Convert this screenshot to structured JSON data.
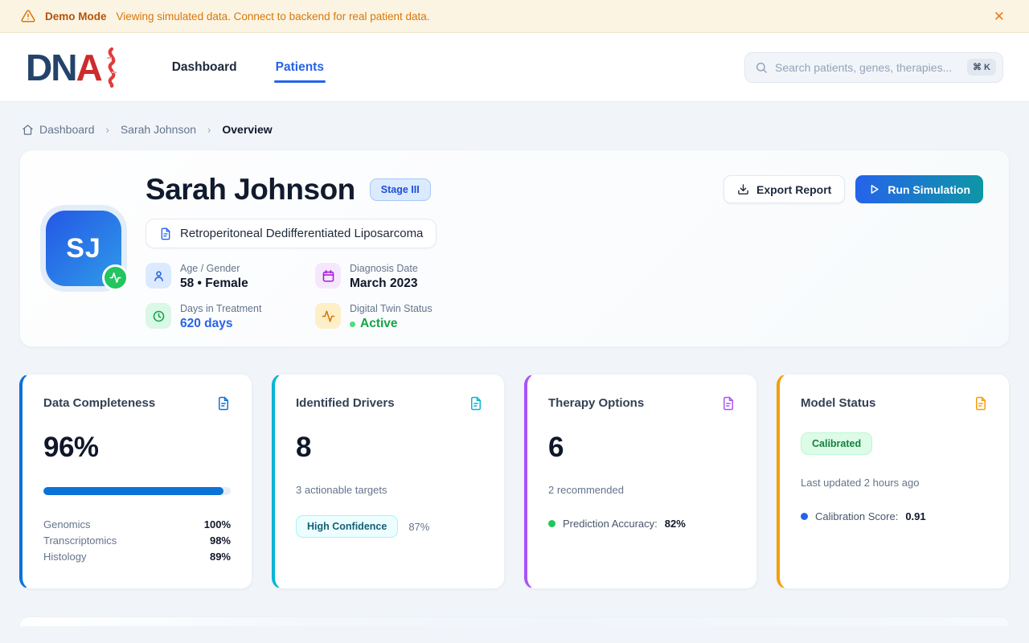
{
  "banner": {
    "icon": "warning-triangle-icon",
    "title": "Demo Mode",
    "message": "Viewing simulated data. Connect to backend for real patient data.",
    "dismiss_label": "✕"
  },
  "header": {
    "logo": {
      "part1": "DN",
      "part2": "A",
      "mark": "dna-squiggle-icon"
    },
    "nav": [
      {
        "label": "Dashboard",
        "active": false
      },
      {
        "label": "Patients",
        "active": true
      }
    ],
    "search": {
      "icon": "search-icon",
      "placeholder": "Search patients, genes, therapies...",
      "shortcut": "⌘ K"
    }
  },
  "breadcrumb": {
    "items": [
      "Dashboard",
      "Sarah Johnson",
      "Overview"
    ],
    "home_icon": "home-icon",
    "separator": "›"
  },
  "patient": {
    "initials": "SJ",
    "status_icon": "activity-pulse-icon",
    "name": "Sarah Johnson",
    "stage": "Stage III",
    "diagnosis": "Retroperitoneal Dedifferentiated Liposarcoma",
    "meta": [
      {
        "icon": "person-icon",
        "label": "Age / Gender",
        "value": "58 • Female"
      },
      {
        "icon": "calendar-icon",
        "label": "Diagnosis Date",
        "value": "March 2023"
      },
      {
        "icon": "clock-icon",
        "label": "Days in Treatment",
        "value": "620 days"
      },
      {
        "icon": "pulse-icon",
        "label": "Digital Twin Status",
        "value": "Active"
      }
    ],
    "actions": {
      "export": "Export Report",
      "run": "Run Simulation"
    }
  },
  "cards": [
    {
      "title": "Data Completeness",
      "icon": "file-text-icon",
      "accent": "#0B72D7",
      "value": "96%",
      "progress": 96,
      "rows": [
        {
          "label": "Genomics",
          "value": "100%"
        },
        {
          "label": "Transcriptomics",
          "value": "98%"
        },
        {
          "label": "Histology",
          "value": "89%"
        }
      ]
    },
    {
      "title": "Identified Drivers",
      "icon": "file-text-icon",
      "accent": "#06B6D4",
      "value": "8",
      "subtext": "3 actionable targets",
      "badge": "High Confidence",
      "badge_value": "87%"
    },
    {
      "title": "Therapy Options",
      "icon": "file-text-icon",
      "accent": "#A855F7",
      "value": "6",
      "subtext": "2 recommended",
      "metric_label": "Prediction Accuracy:",
      "metric_value": "82%",
      "metric_dot_color": "#22C55E"
    },
    {
      "title": "Model Status",
      "icon": "file-text-icon",
      "accent": "#F59E0B",
      "badge": "Calibrated",
      "subtext": "Last updated 2 hours ago",
      "metric_label": "Calibration Score:",
      "metric_value": "0.91",
      "metric_dot_color": "#2563EB"
    }
  ],
  "colors": {
    "primary_blue": "#2563EB",
    "teal": "#0E96A5",
    "progress_blue": "#0B72D7",
    "active_green": "#16A34A",
    "banner_orange": "#D97706"
  }
}
